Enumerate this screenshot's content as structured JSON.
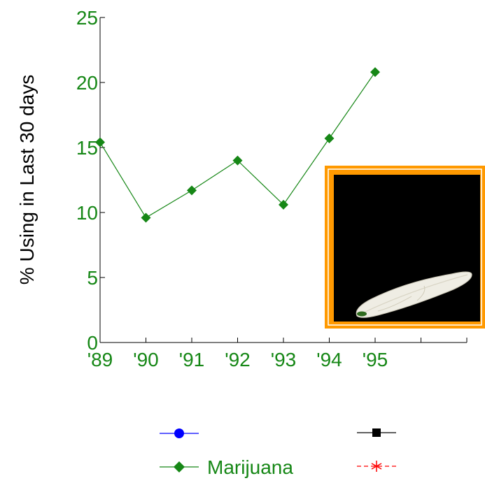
{
  "chart_data": {
    "type": "line",
    "title": "",
    "ylabel": "% Using in Last 30 days",
    "xlabel": "",
    "x_ticks": [
      "'89",
      "'90",
      "'91",
      "'92",
      "'93",
      "'94",
      "'95",
      "",
      ""
    ],
    "categories": [
      "'89",
      "'90",
      "'91",
      "'92",
      "'93",
      "'94",
      "'95"
    ],
    "ylim": [
      0,
      25
    ],
    "y_ticks": [
      0,
      5,
      10,
      15,
      20,
      25
    ],
    "grid": false,
    "series": [
      {
        "name": "Marijuana",
        "color": "#168716",
        "marker": "diamond",
        "values": [
          15.4,
          9.6,
          11.7,
          14.0,
          10.6,
          15.7,
          20.8
        ]
      }
    ],
    "legend": {
      "placement": "bottom",
      "entries": [
        {
          "name": "",
          "color": "#0000ff",
          "marker": "circle"
        },
        {
          "name": "",
          "color": "#000000",
          "marker": "square"
        },
        {
          "name": "Marijuana",
          "color": "#168716",
          "marker": "diamond"
        },
        {
          "name": "",
          "color": "#ff0000",
          "marker": "asterisk",
          "dashed": true
        }
      ]
    },
    "axis_color": "#168716",
    "inset_image": {
      "name": "marijuana-joint-photo",
      "frame_color": "#ff9900",
      "background": "#000000"
    }
  }
}
